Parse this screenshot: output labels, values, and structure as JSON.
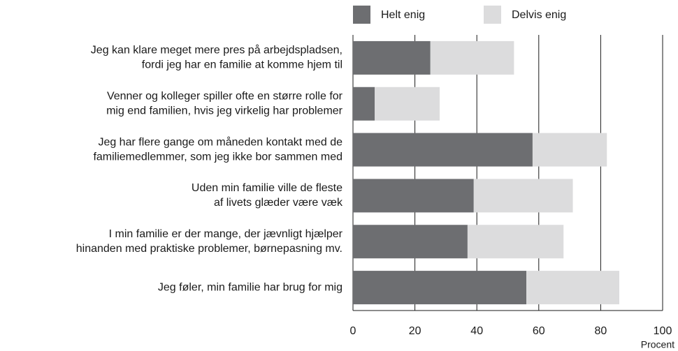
{
  "chart_data": {
    "type": "stacked-barh",
    "categories": [
      [
        "Jeg kan klare meget mere pres på arbejdspladsen,",
        "fordi jeg har en familie at komme hjem til"
      ],
      [
        "Venner og kolleger spiller ofte en større rolle for",
        "mig end familien, hvis jeg virkelig har problemer"
      ],
      [
        "Jeg har flere gange om måneden kontakt med de",
        "familiemedlemmer, som jeg ikke bor sammen med"
      ],
      [
        "Uden min familie ville de fleste",
        "af livets glæder være væk"
      ],
      [
        "I min familie er der mange, der jævnligt hjælper",
        "hinanden med praktiske problemer, børnepasning mv."
      ],
      [
        "Jeg føler, min familie har brug for mig"
      ]
    ],
    "series": [
      {
        "name": "Helt enig",
        "color": "#6d6e71",
        "values": [
          25,
          7,
          58,
          39,
          37,
          56
        ]
      },
      {
        "name": "Delvis enig",
        "color": "#dcdcdd",
        "values": [
          27,
          21,
          24,
          32,
          31,
          30
        ]
      }
    ],
    "xlim": [
      0,
      100
    ],
    "xticks": [
      0,
      20,
      40,
      60,
      80,
      100
    ],
    "xlabel": "Procent",
    "grid": true,
    "legend": "top"
  }
}
